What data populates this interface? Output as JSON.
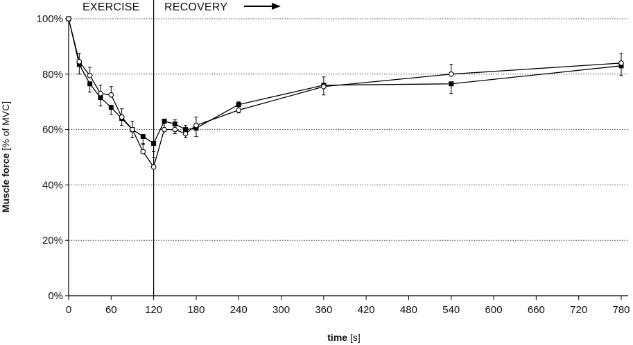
{
  "chart_data": {
    "type": "line",
    "title": "",
    "xlabel_bold": "time",
    "xlabel_rest": " [s]",
    "ylabel_bold": "Muscle force",
    "ylabel_rest": " [% of MVC]",
    "xlim": [
      0,
      790
    ],
    "ylim": [
      0,
      100
    ],
    "x_ticks": [
      0,
      60,
      120,
      180,
      240,
      300,
      360,
      420,
      480,
      540,
      600,
      660,
      720,
      780
    ],
    "x_tick_labels": [
      "0",
      "60",
      "120",
      "180",
      "240",
      "300",
      "360",
      "420",
      "480",
      "540",
      "600",
      "660",
      "720",
      "780"
    ],
    "y_ticks": [
      0,
      20,
      40,
      60,
      80,
      100
    ],
    "y_tick_labels": [
      "0%",
      "20%",
      "40%",
      "60%",
      "80%",
      "100%"
    ],
    "grid": "horizontal-dotted",
    "annotations": {
      "exercise_label": "EXERCISE",
      "recovery_label": "RECOVERY",
      "phase_divider_x": 120
    },
    "series": [
      {
        "name": "filled-squares",
        "marker": "square-filled",
        "x": [
          0,
          15,
          30,
          45,
          60,
          75,
          90,
          105,
          120,
          135,
          150,
          165,
          180,
          240,
          360,
          540,
          780
        ],
        "values": [
          100,
          83.5,
          76.5,
          71.5,
          68,
          64,
          60,
          57.5,
          55,
          63,
          62,
          60,
          60.5,
          69,
          76,
          76.5,
          83
        ],
        "errors": [
          0,
          3.5,
          3,
          3,
          2.5,
          2.5,
          3,
          3,
          3,
          3.5,
          3.5,
          3,
          3,
          3,
          3.5,
          3.5,
          3.5
        ]
      },
      {
        "name": "open-circles",
        "marker": "circle-open",
        "x": [
          0,
          15,
          30,
          45,
          60,
          75,
          90,
          105,
          120,
          135,
          150,
          165,
          180,
          240,
          360,
          540,
          780
        ],
        "values": [
          100,
          84.5,
          79.5,
          73,
          72.5,
          64.5,
          60,
          52,
          46.5,
          60,
          60,
          58.5,
          61.5,
          67,
          75.5,
          80,
          84
        ],
        "errors": [
          0,
          3,
          3,
          3,
          3,
          3,
          3,
          3,
          3.5,
          3.5,
          3.5,
          3,
          3,
          3,
          3.5,
          3.5,
          3.5
        ]
      }
    ]
  }
}
